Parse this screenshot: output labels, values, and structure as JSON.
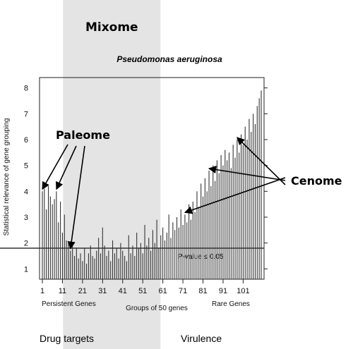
{
  "chart_data": {
    "type": "bar",
    "title": "Pseudomonas aeruginosa",
    "xlabel": "Groups of 50 genes",
    "ylabel": "Statistical relevance of gene grouping",
    "xlim": [
      1,
      110
    ],
    "ylim": [
      0.6,
      8.4
    ],
    "x_ticks": [
      1,
      11,
      21,
      31,
      41,
      51,
      61,
      71,
      81,
      91,
      101
    ],
    "y_ticks": [
      1,
      2,
      3,
      4,
      5,
      6,
      7,
      8
    ],
    "threshold": {
      "value": 1.8,
      "label": "P-value ≤ 0.05"
    },
    "mixome_band": {
      "x_start": 12,
      "x_end": 57,
      "label": "Mixome"
    },
    "values": [
      4.0,
      4.1,
      3.3,
      4.2,
      3.8,
      3.5,
      3.7,
      4.0,
      2.8,
      3.6,
      2.4,
      3.1,
      2.1,
      2.0,
      1.7,
      1.9,
      1.5,
      1.8,
      1.4,
      1.6,
      1.3,
      1.8,
      1.2,
      1.6,
      1.9,
      1.5,
      1.4,
      1.7,
      2.2,
      1.6,
      2.6,
      1.9,
      1.5,
      1.7,
      1.3,
      2.1,
      1.6,
      1.8,
      1.4,
      2.0,
      1.7,
      1.5,
      1.3,
      2.3,
      1.6,
      1.9,
      1.5,
      2.4,
      1.8,
      2.0,
      1.6,
      2.7,
      1.9,
      2.2,
      1.7,
      2.5,
      2.0,
      2.9,
      1.8,
      2.3,
      2.6,
      2.1,
      2.4,
      3.1,
      2.2,
      2.8,
      2.5,
      3.0,
      2.6,
      3.3,
      2.7,
      3.1,
      2.8,
      3.5,
      2.9,
      3.6,
      3.2,
      4.0,
      3.4,
      4.3,
      3.8,
      4.5,
      4.0,
      4.8,
      4.2,
      5.0,
      4.4,
      5.2,
      4.7,
      5.4,
      5.0,
      5.6,
      5.2,
      5.5,
      4.9,
      5.8,
      5.3,
      6.0,
      5.5,
      6.2,
      5.8,
      6.5,
      6.0,
      6.8,
      6.3,
      7.0,
      6.6,
      7.3,
      7.6,
      7.9
    ],
    "annotations": [
      {
        "text": "Paleome",
        "targets": [
          1,
          8,
          15
        ]
      },
      {
        "text": "Cenome",
        "targets": [
          72,
          84,
          98
        ]
      }
    ],
    "axis_notes": {
      "left": "Persistent Genes",
      "right": "Rare Genes"
    },
    "footer": {
      "left": "Drug targets",
      "right": "Virulence"
    }
  }
}
